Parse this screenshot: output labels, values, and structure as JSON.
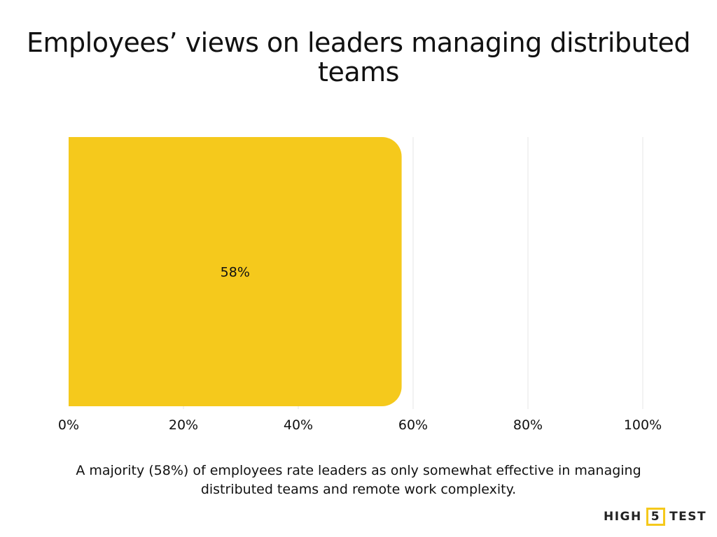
{
  "chart_data": {
    "type": "bar",
    "orientation": "horizontal",
    "title": "Employees’ views on leaders managing distributed teams",
    "categories": [
      ""
    ],
    "values": [
      58
    ],
    "data_labels": [
      "58%"
    ],
    "xlim": [
      0,
      100
    ],
    "xticks": [
      0,
      20,
      40,
      60,
      80,
      100
    ],
    "xtick_labels": [
      "0%",
      "20%",
      "40%",
      "60%",
      "80%",
      "100%"
    ],
    "grid": "vertical",
    "bar_color": "#F5C91C",
    "grid_color": "#E6E6E6"
  },
  "caption": "A majority (58%) of employees rate leaders as only somewhat effective in managing distributed teams and remote work complexity.",
  "logo": {
    "left": "HIGH",
    "mid": "5",
    "right": "TEST",
    "accent": "#F5C91C"
  }
}
